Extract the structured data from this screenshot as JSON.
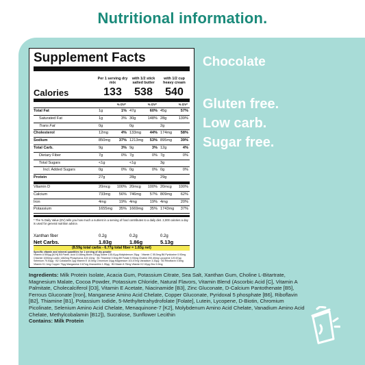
{
  "header": {
    "title": "Nutritional information."
  },
  "label": {
    "title": "Supplement Facts",
    "calories_label": "Calories",
    "columns": [
      {
        "heading": "Per 1 serving dry mix",
        "calories": "133",
        "dv": "% DV*"
      },
      {
        "heading": "with 1/2 stick salted butter",
        "calories": "538",
        "dv": "% DV*"
      },
      {
        "heading": "with 1/2 cup heavy cream",
        "calories": "540",
        "dv": "% DV*"
      }
    ],
    "rows": [
      {
        "name": "Total Fat",
        "style": "b",
        "v": [
          [
            "1g",
            "1%"
          ],
          [
            "47g",
            "60%"
          ],
          [
            "45g",
            "57%"
          ]
        ]
      },
      {
        "name": "Saturated Fat",
        "style": "ind",
        "v": [
          [
            "1g",
            "3%"
          ],
          [
            "30g",
            "148%"
          ],
          [
            "28g",
            "139%"
          ]
        ]
      },
      {
        "name": "Trans Fat",
        "style": "ind it",
        "v": [
          [
            "0g",
            ""
          ],
          [
            "0g",
            ""
          ],
          [
            "2g",
            ""
          ]
        ]
      },
      {
        "name": "Cholesterol",
        "style": "b",
        "v": [
          [
            "12mg",
            "4%"
          ],
          [
            "133mg",
            "44%"
          ],
          [
            "174mg",
            "58%"
          ]
        ]
      },
      {
        "name": "Sodium",
        "style": "b",
        "v": [
          [
            "850mg",
            "37%"
          ],
          [
            "1213mg",
            "53%"
          ],
          [
            "895mg",
            "39%"
          ]
        ]
      },
      {
        "name": "Total Carb.",
        "style": "b",
        "v": [
          [
            "9g",
            "3%"
          ],
          [
            "9g",
            "3%"
          ],
          [
            "12g",
            "4%"
          ]
        ]
      },
      {
        "name": "Dietary Fiber",
        "style": "ind",
        "v": [
          [
            "7g",
            "0%"
          ],
          [
            "7g",
            "0%"
          ],
          [
            "7g",
            "0%"
          ]
        ]
      },
      {
        "name": "Total Sugars",
        "style": "ind",
        "v": [
          [
            "<1g",
            ""
          ],
          [
            "<1g",
            ""
          ],
          [
            "3g",
            ""
          ]
        ]
      },
      {
        "name": "Incl. Added Sugars",
        "style": "ind2",
        "v": [
          [
            "0g",
            "0%"
          ],
          [
            "0g",
            "0%"
          ],
          [
            "0g",
            "0%"
          ]
        ]
      },
      {
        "name": "Protein",
        "style": "b thick",
        "v": [
          [
            "27g",
            ""
          ],
          [
            "28g",
            ""
          ],
          [
            "29g",
            ""
          ]
        ]
      },
      {
        "name": "Vitamin D",
        "style": "vit",
        "v": [
          [
            "20mcg",
            "100%"
          ],
          [
            "20mcg",
            "100%"
          ],
          [
            "20mcg",
            "100%"
          ]
        ]
      },
      {
        "name": "Calcium",
        "style": "vit",
        "v": [
          [
            "733mg",
            "56%"
          ],
          [
            "746mg",
            "57%"
          ],
          [
            "809mg",
            "62%"
          ]
        ]
      },
      {
        "name": "Iron",
        "style": "vit",
        "v": [
          [
            "4mg",
            "19%"
          ],
          [
            "4mg",
            "19%"
          ],
          [
            "4mg",
            "20%"
          ]
        ]
      },
      {
        "name": "Potassium",
        "style": "vit",
        "v": [
          [
            "1655mg",
            "35%"
          ],
          [
            "1669mg",
            "35%"
          ],
          [
            "1743mg",
            "37%"
          ]
        ]
      }
    ],
    "footnote": "* The % Daily Value (DV) tells you how much a nutrient in a serving of food contributes to a daily diet. 2,000 calories a day is used for general nutrition advice.",
    "xanthan": {
      "name": "Xanthan fiber",
      "v": [
        "0.2g",
        "0.2g",
        "0.2g"
      ]
    },
    "net_carbs": {
      "name": "Net Carbs.",
      "v": [
        "1.83g",
        "1.86g",
        "5.13g"
      ]
    },
    "fiber_note": "(8.59g total carbs - 6.77g total fiber = 1.83g net)",
    "specific_heading": "Specific vitamin and mineral quantities for 1 serving of dry powder",
    "specific_text": "Vitamin A 550µg [61%]  B5 Panth. Acid 10.88mg  Biotin 150µg  Iodine 135.41µg  Molybdenum 25µg · Vitamin C 55.5mg  B6 Pyridoxine 0.93mg  Chloride 1000mg  Lutein 1462mg  Phosphorus 419.12mg · B1 Thiamine 0.5mg  B9 Folate 0.93mg  Choline 200.40mg  Lycopene 120.67µg  Selenium 70.53µg · B2 Cobalamin 2µg  Vitamin E 10.5mg  Chromium 34µg  Magnesium 101.67mg  Vanadium 3.33µg · B3 Riboflavin 0.6mg  Vitamin K1 1mg  Copper 70µg  Manganese 0.67mg  Zeaxanthin 1.95µg · B3 Niacin 8.75mg  Vitamin K2 40µg  Zinc 5.9mg"
  },
  "right": {
    "flavor": "Chocolate",
    "claims": [
      "Gluten free.",
      "Low carb.",
      "Sugar free."
    ]
  },
  "ingredients": {
    "label": "Ingredients:",
    "text": "Milk Protein Isolate, Acacia Gum, Potassium Citrate, Sea Salt, Xanthan Gum, Choline L-Bitartrate, Magnesium Malate, Cocoa Powder, Potassium Chloride, Natural Flavors, Vitamin Blend (Ascorbic Acid [C], Vitamin A Palmitate, Cholecalciferol [D3], Vitamin E Acetate, Niacinamide [B3], Zinc Gluconate, D-Calcium Pantothenate [B5], Ferrous Gluconate [Iron], Manganese Amino Acid Chelate, Copper Gluconate, Pyridoxal 5 phosphate [B6], Riboflavin [B2], Thiamine [B1], Potassium Iodide, 5-Methyltetrahydrofolate [Folate], Lutein, Lycopene, D-Biotin, Chromium Picolinate, Selenium Amino Acid Chelate, Menaquinone-7 [K2], Molybdenum Amino Acid Chelate, Vanadium Amino Acid Chelate, Methylcobalamin [B12]), Sucralose, Sunflower Lecithin",
    "contains": "Contains: Milk Protein"
  },
  "colors": {
    "teal_title": "#1a8a7a",
    "panel": "#a8dcd7",
    "highlight": "#f5ea55"
  },
  "icons": {
    "cup": "shaker-cup-icon"
  }
}
